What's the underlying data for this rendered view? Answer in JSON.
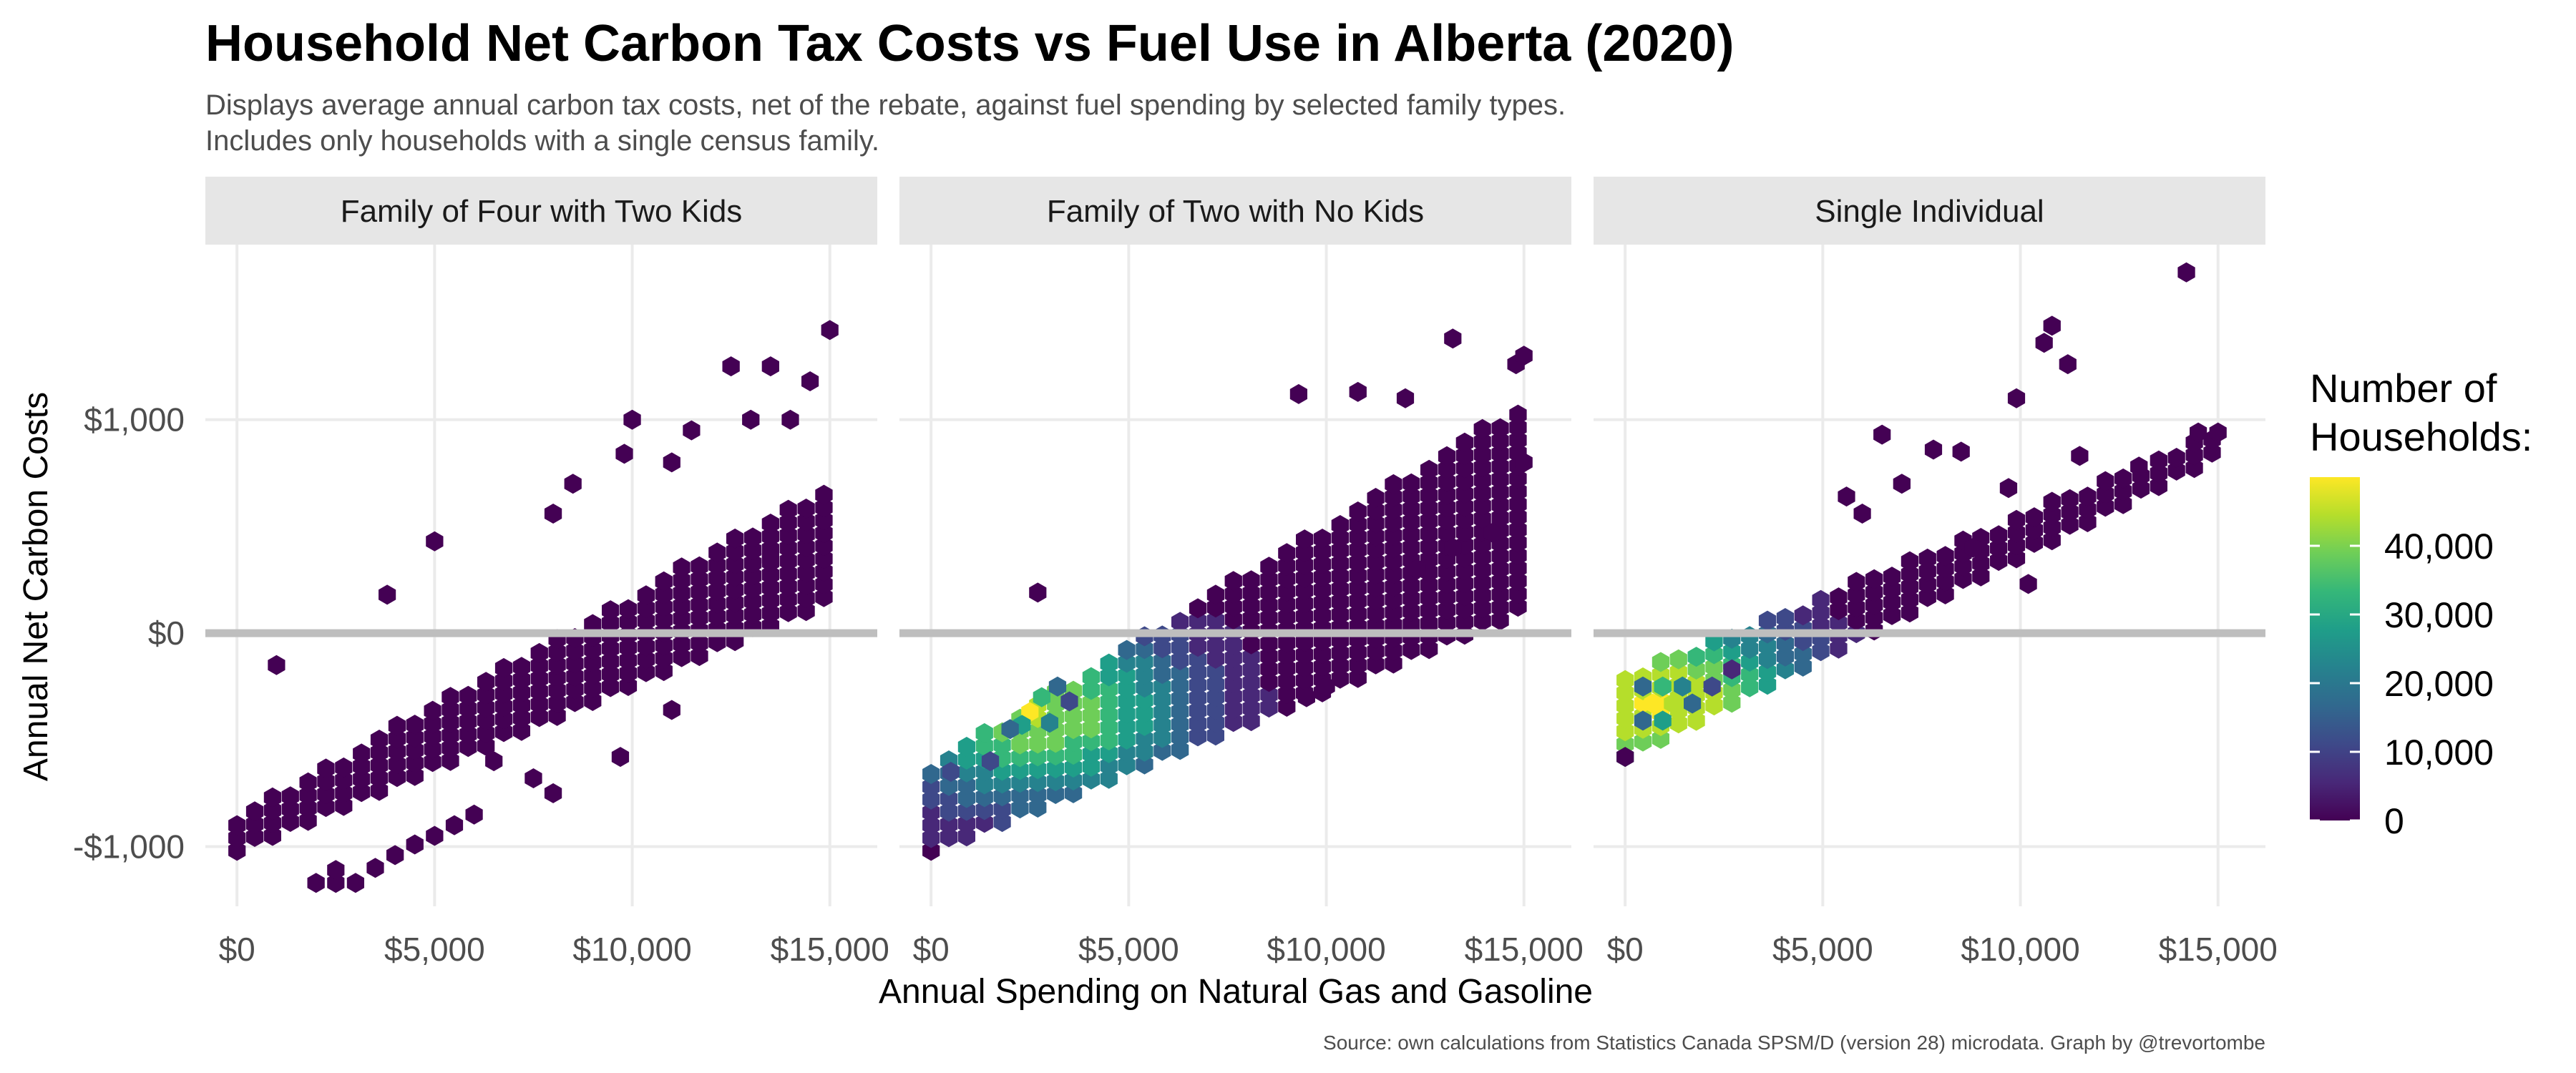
{
  "chart_data": {
    "type": "heatmap",
    "subtype": "hexbin",
    "title": "Household Net Carbon Tax Costs vs Fuel Use in Alberta (2020)",
    "subtitle_lines": [
      "Displays average annual carbon tax costs, net of the rebate, against fuel spending by selected family types.",
      "Includes only households with a single census family."
    ],
    "xlabel": "Annual Spending on Natural Gas and Gasoline",
    "ylabel": "Annual Net Carbon Costs",
    "caption": "Source: own calculations from Statistics Canada SPSM/D (version 28) microdata. Graph by @trevortombe",
    "xlim": [
      -800,
      16200
    ],
    "ylim": [
      -1280,
      1820
    ],
    "x_ticks": [
      0,
      5000,
      10000,
      15000
    ],
    "x_tick_labels": [
      "$0",
      "$5,000",
      "$10,000",
      "$15,000"
    ],
    "y_ticks": [
      -1000,
      0,
      1000
    ],
    "y_tick_labels": [
      "-$1,000",
      "$0",
      "$1,000"
    ],
    "reference_line_y": 0,
    "grid": true,
    "legend": {
      "title_lines": [
        "Number of",
        "Households:"
      ],
      "placement": "right",
      "min": 0,
      "max": 50000,
      "ticks": [
        0,
        10000,
        20000,
        30000,
        40000
      ],
      "tick_labels": [
        "0",
        "10,000",
        "20,000",
        "30,000",
        "40,000"
      ],
      "colors": [
        "#440154",
        "#482878",
        "#3e4989",
        "#31688e",
        "#26828e",
        "#1f9e89",
        "#35b779",
        "#6ece58",
        "#b5de2b",
        "#fde725"
      ]
    },
    "panels": [
      {
        "label": "Family of Four with Two Kids",
        "band": {
          "x0": 0,
          "x1": 15100,
          "x_step": 450,
          "lo_start": -1020,
          "lo_slope": 0.078,
          "hi_start": -850,
          "hi_slope": 0.103,
          "peak_x": 3500,
          "peak_y": -250,
          "peak_count": 4000
        },
        "points": [
          {
            "x": 2000,
            "y": -1170,
            "count": 500
          },
          {
            "x": 2500,
            "y": -1170,
            "count": 500
          },
          {
            "x": 3000,
            "y": -1170,
            "count": 500
          },
          {
            "x": 2500,
            "y": -1110,
            "count": 500
          },
          {
            "x": 3500,
            "y": -1100,
            "count": 500
          },
          {
            "x": 4000,
            "y": -1040,
            "count": 500
          },
          {
            "x": 4500,
            "y": -990,
            "count": 500
          },
          {
            "x": 5000,
            "y": -950,
            "count": 500
          },
          {
            "x": 5500,
            "y": -900,
            "count": 500
          },
          {
            "x": 6000,
            "y": -850,
            "count": 500
          },
          {
            "x": 5000,
            "y": 430,
            "count": 500
          },
          {
            "x": 3800,
            "y": 180,
            "count": 500
          },
          {
            "x": 1000,
            "y": -150,
            "count": 500
          },
          {
            "x": 8000,
            "y": 560,
            "count": 500
          },
          {
            "x": 10000,
            "y": 1000,
            "count": 500
          },
          {
            "x": 11500,
            "y": 950,
            "count": 500
          },
          {
            "x": 12500,
            "y": 1250,
            "count": 500
          },
          {
            "x": 13500,
            "y": 1250,
            "count": 500
          },
          {
            "x": 14500,
            "y": 1180,
            "count": 500
          },
          {
            "x": 15000,
            "y": 1420,
            "count": 500
          },
          {
            "x": 14000,
            "y": 1000,
            "count": 500
          },
          {
            "x": 13000,
            "y": 1000,
            "count": 500
          },
          {
            "x": 11000,
            "y": 800,
            "count": 500
          },
          {
            "x": 8500,
            "y": 700,
            "count": 500
          },
          {
            "x": 9800,
            "y": 840,
            "count": 500
          },
          {
            "x": 9700,
            "y": -580,
            "count": 500
          },
          {
            "x": 11000,
            "y": -360,
            "count": 500
          },
          {
            "x": 7500,
            "y": -680,
            "count": 500
          },
          {
            "x": 8000,
            "y": -750,
            "count": 500
          },
          {
            "x": 6500,
            "y": -600,
            "count": 500
          },
          {
            "x": 13500,
            "y": 350,
            "count": 500
          }
        ]
      },
      {
        "label": "Family of Two with No Kids",
        "band": {
          "x0": 0,
          "x1": 15100,
          "x_step": 450,
          "lo_start": -1020,
          "lo_slope": 0.075,
          "hi_start": -620,
          "hi_slope": 0.113,
          "peak_x": 2700,
          "peak_y": -370,
          "peak_count": 40000
        },
        "points": [
          {
            "x": 2500,
            "y": -370,
            "count": 48000
          },
          {
            "x": 2800,
            "y": -300,
            "count": 30000
          },
          {
            "x": 2300,
            "y": -430,
            "count": 25000
          },
          {
            "x": 3000,
            "y": -420,
            "count": 22000
          },
          {
            "x": 2000,
            "y": -450,
            "count": 18000
          },
          {
            "x": 3200,
            "y": -250,
            "count": 16000
          },
          {
            "x": 500,
            "y": -650,
            "count": 12000
          },
          {
            "x": 1500,
            "y": -600,
            "count": 14000
          },
          {
            "x": 3500,
            "y": -320,
            "count": 12000
          },
          {
            "x": 2700,
            "y": 190,
            "count": 500
          },
          {
            "x": 9300,
            "y": 1120,
            "count": 500
          },
          {
            "x": 10800,
            "y": 1130,
            "count": 500
          },
          {
            "x": 12000,
            "y": 1100,
            "count": 500
          },
          {
            "x": 13200,
            "y": 1380,
            "count": 500
          },
          {
            "x": 14800,
            "y": 1260,
            "count": 500
          },
          {
            "x": 15000,
            "y": 1300,
            "count": 500
          },
          {
            "x": 15000,
            "y": 800,
            "count": 500
          },
          {
            "x": 14200,
            "y": 470,
            "count": 500
          },
          {
            "x": 13200,
            "y": 400,
            "count": 500
          },
          {
            "x": 12300,
            "y": 300,
            "count": 500
          },
          {
            "x": 9500,
            "y": -300,
            "count": 500
          },
          {
            "x": 10000,
            "y": -250,
            "count": 500
          }
        ]
      },
      {
        "label": "Single Individual",
        "band": {
          "x0": 0,
          "x1": 15100,
          "x_step": 450,
          "lo_start": -580,
          "lo_slope": 0.094,
          "hi_start": -200,
          "hi_slope": 0.076,
          "peak_x": 900,
          "peak_y": -330,
          "peak_count": 45000
        },
        "points": [
          {
            "x": 700,
            "y": -330,
            "count": 48000
          },
          {
            "x": 1200,
            "y": -330,
            "count": 40000
          },
          {
            "x": 950,
            "y": -250,
            "count": 30000
          },
          {
            "x": 950,
            "y": -410,
            "count": 28000
          },
          {
            "x": 450,
            "y": -250,
            "count": 18000
          },
          {
            "x": 1450,
            "y": -250,
            "count": 22000
          },
          {
            "x": 1700,
            "y": -330,
            "count": 16000
          },
          {
            "x": 450,
            "y": -410,
            "count": 15000
          },
          {
            "x": 2200,
            "y": -250,
            "count": 12000
          },
          {
            "x": 2700,
            "y": -170,
            "count": 9000
          },
          {
            "x": 0,
            "y": -580,
            "count": 500
          },
          {
            "x": 14200,
            "y": 1690,
            "count": 500
          },
          {
            "x": 10800,
            "y": 1440,
            "count": 500
          },
          {
            "x": 10600,
            "y": 1360,
            "count": 500
          },
          {
            "x": 11200,
            "y": 1260,
            "count": 500
          },
          {
            "x": 9900,
            "y": 1100,
            "count": 500
          },
          {
            "x": 14500,
            "y": 940,
            "count": 500
          },
          {
            "x": 15000,
            "y": 940,
            "count": 500
          },
          {
            "x": 6500,
            "y": 930,
            "count": 500
          },
          {
            "x": 7800,
            "y": 860,
            "count": 500
          },
          {
            "x": 8500,
            "y": 850,
            "count": 500
          },
          {
            "x": 11500,
            "y": 830,
            "count": 500
          },
          {
            "x": 13000,
            "y": 780,
            "count": 500
          },
          {
            "x": 5600,
            "y": 640,
            "count": 500
          },
          {
            "x": 7000,
            "y": 700,
            "count": 500
          },
          {
            "x": 9700,
            "y": 680,
            "count": 500
          },
          {
            "x": 6000,
            "y": 560,
            "count": 500
          },
          {
            "x": 8800,
            "y": 400,
            "count": 500
          },
          {
            "x": 10200,
            "y": 230,
            "count": 500
          }
        ]
      }
    ]
  }
}
